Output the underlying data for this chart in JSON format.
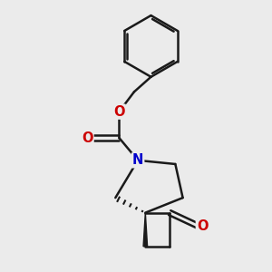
{
  "bg_color": "#ebebeb",
  "line_color": "#1a1a1a",
  "bond_lw": 1.8,
  "atom_colors": {
    "O": "#cc0000",
    "N": "#0000cc"
  },
  "font_size": 10.5
}
